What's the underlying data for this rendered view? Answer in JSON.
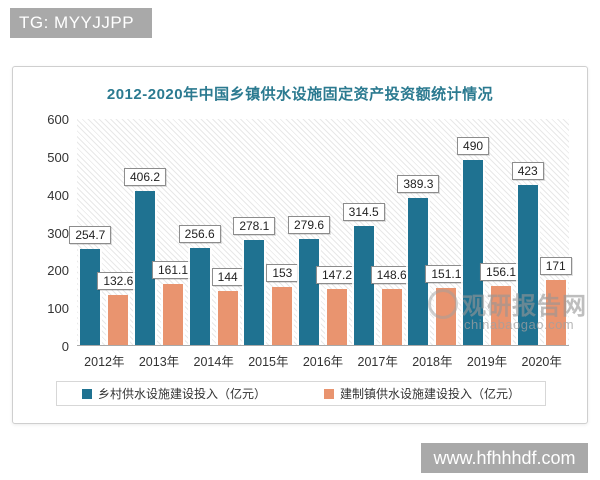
{
  "page": {
    "top_badge": "TG: MYYJJPP",
    "bottom_badge": "www.hfhhhdf.com"
  },
  "watermark": {
    "name": "观研报告网",
    "domain": "chinabaogao.com"
  },
  "chart_data": {
    "type": "bar",
    "title": "2012-2020年中国乡镇供水设施固定资产投资额统计情况",
    "categories": [
      "2012年",
      "2013年",
      "2014年",
      "2015年",
      "2016年",
      "2017年",
      "2018年",
      "2019年",
      "2020年"
    ],
    "series": [
      {
        "name": "乡村供水设施建设投入（亿元）",
        "color": "#1f7291",
        "values": [
          254.7,
          406.2,
          256.6,
          278.1,
          279.6,
          314.5,
          389.3,
          490,
          423
        ]
      },
      {
        "name": "建制镇供水设施建设投入（亿元）",
        "color": "#e9946f",
        "values": [
          132.6,
          161.1,
          144,
          153,
          147.2,
          148.6,
          151.1,
          156.1,
          171
        ]
      }
    ],
    "xlabel": "",
    "ylabel": "",
    "ylim": [
      0,
      600
    ],
    "yticks": [
      0,
      100,
      200,
      300,
      400,
      500,
      600
    ],
    "grid": false,
    "legend_position": "bottom",
    "data_labels": true,
    "title_color": "#2b7a90",
    "plot_background": "diagonal-hatch"
  }
}
